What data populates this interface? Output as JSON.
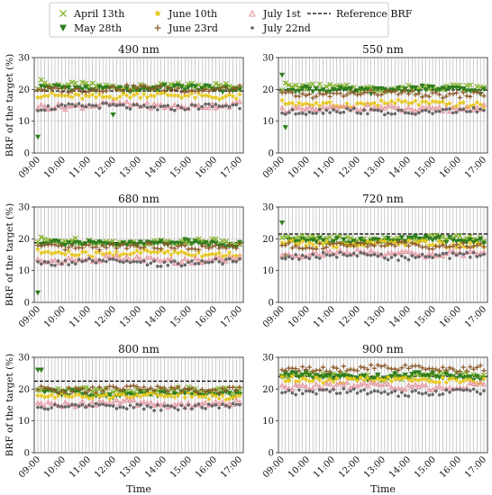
{
  "legend": {
    "entries": [
      {
        "label": "April 13th",
        "marker": "x",
        "color": "#8ab833"
      },
      {
        "label": "May 28th",
        "marker": "tri-down",
        "color": "#2e7d1f"
      },
      {
        "label": "June 10th",
        "marker": "star",
        "color": "#e6c619"
      },
      {
        "label": "June 23rd",
        "marker": "plus",
        "color": "#8b5a2b"
      },
      {
        "label": "July 1st",
        "marker": "tri-up",
        "color": "#e8959f"
      },
      {
        "label": "July 22nd",
        "marker": "dot",
        "color": "#666666"
      },
      {
        "label": "Reference BRF",
        "marker": "dashed-line",
        "color": "#000000"
      }
    ]
  },
  "chart_data": [
    {
      "type": "scatter",
      "title": "490 nm",
      "ylabel": "BRF of the target (%)",
      "xlabel": "",
      "ylim": [
        0,
        30
      ],
      "yticks": [
        0,
        10,
        20,
        30
      ],
      "xticks": [
        "09:00",
        "10:00",
        "11:00",
        "12:00",
        "13:00",
        "14:00",
        "15:00",
        "16:00",
        "17:00"
      ],
      "reference": 19.5,
      "series": [
        {
          "name": "April 13th",
          "base": 21.0,
          "outliers": [
            [
              1,
              23.0
            ],
            [
              2,
              22.0
            ]
          ]
        },
        {
          "name": "May 28th",
          "base": 20.2,
          "outliers": [
            [
              0,
              5.0
            ],
            [
              22,
              12.0
            ]
          ]
        },
        {
          "name": "June 10th",
          "base": 18.0,
          "outliers": []
        },
        {
          "name": "June 23rd",
          "base": 20.2,
          "outliers": []
        },
        {
          "name": "July 1st",
          "base": 15.0,
          "outliers": []
        },
        {
          "name": "July 22nd",
          "base": 14.5,
          "outliers": []
        }
      ]
    },
    {
      "type": "scatter",
      "title": "550 nm",
      "ylabel": "",
      "xlabel": "",
      "ylim": [
        0,
        30
      ],
      "yticks": [
        0,
        10,
        20,
        30
      ],
      "xticks": [
        "09:00",
        "10:00",
        "11:00",
        "12:00",
        "13:00",
        "14:00",
        "15:00",
        "16:00",
        "17:00"
      ],
      "reference": 19.8,
      "series": [
        {
          "name": "April 13th",
          "base": 20.5,
          "outliers": [
            [
              1,
              22.0
            ]
          ]
        },
        {
          "name": "May 28th",
          "base": 19.8,
          "outliers": [
            [
              0,
              24.5
            ],
            [
              1,
              8.0
            ]
          ]
        },
        {
          "name": "June 10th",
          "base": 15.5,
          "outliers": []
        },
        {
          "name": "June 23rd",
          "base": 18.5,
          "outliers": []
        },
        {
          "name": "July 1st",
          "base": 14.0,
          "outliers": []
        },
        {
          "name": "July 22nd",
          "base": 13.0,
          "outliers": []
        }
      ]
    },
    {
      "type": "scatter",
      "title": "680 nm",
      "ylabel": "BRF of the target (%)",
      "xlabel": "",
      "ylim": [
        0,
        30
      ],
      "yticks": [
        0,
        10,
        20,
        30
      ],
      "xticks": [
        "09:00",
        "10:00",
        "11:00",
        "12:00",
        "13:00",
        "14:00",
        "15:00",
        "16:00",
        "17:00"
      ],
      "reference": 18.8,
      "series": [
        {
          "name": "April 13th",
          "base": 19.0,
          "outliers": [
            [
              1,
              20.5
            ]
          ]
        },
        {
          "name": "May 28th",
          "base": 18.5,
          "outliers": [
            [
              0,
              3.0
            ]
          ]
        },
        {
          "name": "June 10th",
          "base": 15.5,
          "outliers": []
        },
        {
          "name": "June 23rd",
          "base": 17.5,
          "outliers": []
        },
        {
          "name": "July 1st",
          "base": 13.5,
          "outliers": []
        },
        {
          "name": "July 22nd",
          "base": 12.5,
          "outliers": []
        }
      ]
    },
    {
      "type": "scatter",
      "title": "720 nm",
      "ylabel": "",
      "xlabel": "",
      "ylim": [
        0,
        30
      ],
      "yticks": [
        0,
        10,
        20,
        30
      ],
      "xticks": [
        "09:00",
        "10:00",
        "11:00",
        "12:00",
        "13:00",
        "14:00",
        "15:00",
        "16:00",
        "17:00"
      ],
      "reference": 21.5,
      "series": [
        {
          "name": "April 13th",
          "base": 20.0,
          "outliers": []
        },
        {
          "name": "May 28th",
          "base": 19.5,
          "outliers": [
            [
              0,
              25.0
            ],
            [
              1,
              14.5
            ]
          ]
        },
        {
          "name": "June 10th",
          "base": 18.5,
          "outliers": []
        },
        {
          "name": "June 23rd",
          "base": 18.0,
          "outliers": []
        },
        {
          "name": "July 1st",
          "base": 15.5,
          "outliers": []
        },
        {
          "name": "July 22nd",
          "base": 14.5,
          "outliers": []
        }
      ]
    },
    {
      "type": "scatter",
      "title": "800 nm",
      "ylabel": "BRF of the target (%)",
      "xlabel": "Time",
      "ylim": [
        0,
        30
      ],
      "yticks": [
        0,
        10,
        20,
        30
      ],
      "xticks": [
        "09:00",
        "10:00",
        "11:00",
        "12:00",
        "13:00",
        "14:00",
        "15:00",
        "16:00",
        "17:00"
      ],
      "reference": 22.5,
      "series": [
        {
          "name": "April 13th",
          "base": 19.5,
          "outliers": []
        },
        {
          "name": "May 28th",
          "base": 18.5,
          "outliers": [
            [
              0,
              26.0
            ],
            [
              1,
              26.0
            ]
          ]
        },
        {
          "name": "June 10th",
          "base": 18.0,
          "outliers": []
        },
        {
          "name": "June 23rd",
          "base": 20.0,
          "outliers": []
        },
        {
          "name": "July 1st",
          "base": 15.5,
          "outliers": []
        },
        {
          "name": "July 22nd",
          "base": 14.5,
          "outliers": []
        }
      ]
    },
    {
      "type": "scatter",
      "title": "900 nm",
      "ylabel": "",
      "xlabel": "Time",
      "ylim": [
        0,
        30
      ],
      "yticks": [
        0,
        10,
        20,
        30
      ],
      "xticks": [
        "09:00",
        "10:00",
        "11:00",
        "12:00",
        "13:00",
        "14:00",
        "15:00",
        "16:00",
        "17:00"
      ],
      "reference": 24.0,
      "series": [
        {
          "name": "April 13th",
          "base": 24.0,
          "outliers": []
        },
        {
          "name": "May 28th",
          "base": 24.0,
          "outliers": []
        },
        {
          "name": "June 10th",
          "base": 23.0,
          "outliers": []
        },
        {
          "name": "June 23rd",
          "base": 26.5,
          "outliers": []
        },
        {
          "name": "July 1st",
          "base": 21.0,
          "outliers": []
        },
        {
          "name": "July 22nd",
          "base": 19.0,
          "outliers": []
        }
      ]
    }
  ]
}
